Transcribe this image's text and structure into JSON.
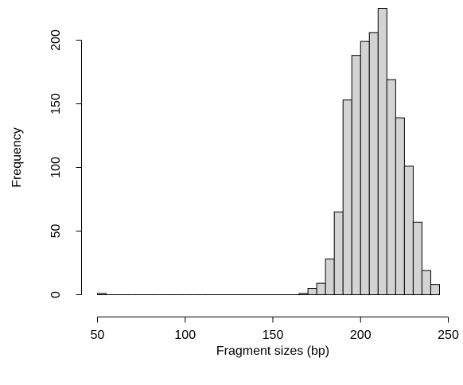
{
  "chart_data": {
    "type": "bar",
    "title": "",
    "xlabel": "Fragment sizes (bp)",
    "ylabel": "Frequency",
    "bin_width": 5,
    "bins": [
      {
        "x0": 50,
        "x1": 55,
        "count": 1
      },
      {
        "x0": 55,
        "x1": 60,
        "count": 0
      },
      {
        "x0": 60,
        "x1": 65,
        "count": 0
      },
      {
        "x0": 65,
        "x1": 70,
        "count": 0
      },
      {
        "x0": 70,
        "x1": 75,
        "count": 0
      },
      {
        "x0": 75,
        "x1": 80,
        "count": 0
      },
      {
        "x0": 80,
        "x1": 85,
        "count": 0
      },
      {
        "x0": 85,
        "x1": 90,
        "count": 0
      },
      {
        "x0": 90,
        "x1": 95,
        "count": 0
      },
      {
        "x0": 95,
        "x1": 100,
        "count": 0
      },
      {
        "x0": 100,
        "x1": 105,
        "count": 0
      },
      {
        "x0": 105,
        "x1": 110,
        "count": 0
      },
      {
        "x0": 110,
        "x1": 115,
        "count": 0
      },
      {
        "x0": 115,
        "x1": 120,
        "count": 0
      },
      {
        "x0": 120,
        "x1": 125,
        "count": 0
      },
      {
        "x0": 125,
        "x1": 130,
        "count": 0
      },
      {
        "x0": 130,
        "x1": 135,
        "count": 0
      },
      {
        "x0": 135,
        "x1": 140,
        "count": 0
      },
      {
        "x0": 140,
        "x1": 145,
        "count": 0
      },
      {
        "x0": 145,
        "x1": 150,
        "count": 0
      },
      {
        "x0": 150,
        "x1": 155,
        "count": 0
      },
      {
        "x0": 155,
        "x1": 160,
        "count": 0
      },
      {
        "x0": 160,
        "x1": 165,
        "count": 0
      },
      {
        "x0": 165,
        "x1": 170,
        "count": 1
      },
      {
        "x0": 170,
        "x1": 175,
        "count": 5
      },
      {
        "x0": 175,
        "x1": 180,
        "count": 9
      },
      {
        "x0": 180,
        "x1": 185,
        "count": 28
      },
      {
        "x0": 185,
        "x1": 190,
        "count": 65
      },
      {
        "x0": 190,
        "x1": 195,
        "count": 153
      },
      {
        "x0": 195,
        "x1": 200,
        "count": 188
      },
      {
        "x0": 200,
        "x1": 205,
        "count": 199
      },
      {
        "x0": 205,
        "x1": 210,
        "count": 206
      },
      {
        "x0": 210,
        "x1": 215,
        "count": 225
      },
      {
        "x0": 215,
        "x1": 220,
        "count": 169
      },
      {
        "x0": 220,
        "x1": 225,
        "count": 139
      },
      {
        "x0": 225,
        "x1": 230,
        "count": 101
      },
      {
        "x0": 230,
        "x1": 235,
        "count": 57
      },
      {
        "x0": 235,
        "x1": 240,
        "count": 19
      },
      {
        "x0": 240,
        "x1": 245,
        "count": 8
      }
    ],
    "xlim": [
      50,
      245
    ],
    "ylim": [
      0,
      225
    ],
    "x_ticks": [
      50,
      100,
      150,
      200,
      250
    ],
    "x_tick_labels": [
      "50",
      "100",
      "150",
      "200",
      "250"
    ],
    "y_ticks": [
      0,
      50,
      100,
      150,
      200
    ],
    "y_tick_labels": [
      "0",
      "50",
      "100",
      "150",
      "200"
    ],
    "grid": false,
    "bar_color": "#d3d3d3",
    "edge_color": "#000000"
  }
}
